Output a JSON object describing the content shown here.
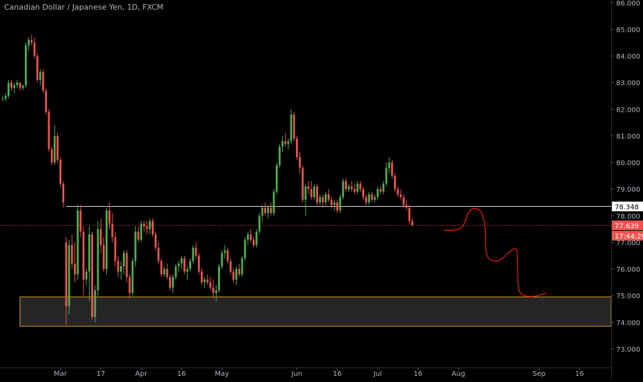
{
  "header": {
    "title": "Canadian Dollar / Japanese Yen, 1D, FXCM"
  },
  "colors": {
    "background": "#000000",
    "up": "#4caf50",
    "down": "#ef5350",
    "axis_text": "#b2b5be",
    "zone_border": "#e0a030",
    "zone_fill": "#2c2c2c",
    "resistance_line": "#e6e6e6",
    "price_line": "#ef5350",
    "projection": "#e01010"
  },
  "price_labels": {
    "resistance": "78.348",
    "last_price": "77.639",
    "countdown": "17:44:29"
  },
  "chart_data": {
    "type": "candlestick",
    "title": "Canadian Dollar / Japanese Yen, 1D, FXCM",
    "y_axis": {
      "range": [
        72.3,
        86.1
      ],
      "ticks": [
        "73.000",
        "74.000",
        "75.000",
        "76.000",
        "77.000",
        "78.000",
        "79.000",
        "80.000",
        "81.000",
        "82.000",
        "83.000",
        "84.000",
        "85.000",
        "86.000"
      ]
    },
    "x_axis": {
      "ticks": [
        "Mar",
        "17",
        "Apr",
        "16",
        "May",
        "Jun",
        "16",
        "Jul",
        "16",
        "Aug",
        "Sep",
        "16"
      ],
      "tick_bar_index": [
        20,
        34,
        48,
        62,
        76,
        102,
        116,
        130,
        144,
        158,
        186,
        200
      ]
    },
    "ohlc": [
      [
        82.4,
        82.5,
        82.3,
        82.4
      ],
      [
        82.4,
        82.6,
        82.3,
        82.5
      ],
      [
        82.5,
        83.1,
        82.4,
        83.0
      ],
      [
        83.0,
        83.1,
        82.7,
        82.8
      ],
      [
        82.8,
        83.0,
        82.6,
        82.9
      ],
      [
        82.9,
        83.1,
        82.8,
        83.0
      ],
      [
        83.0,
        83.0,
        82.7,
        82.8
      ],
      [
        82.8,
        82.9,
        82.7,
        82.9
      ],
      [
        82.9,
        84.5,
        82.8,
        84.4
      ],
      [
        84.4,
        84.7,
        84.2,
        84.6
      ],
      [
        84.6,
        84.8,
        84.4,
        84.5
      ],
      [
        84.5,
        84.7,
        83.9,
        84.0
      ],
      [
        84.0,
        84.1,
        83.0,
        83.1
      ],
      [
        83.1,
        83.5,
        82.9,
        83.4
      ],
      [
        83.4,
        83.5,
        82.6,
        82.7
      ],
      [
        82.7,
        82.8,
        81.8,
        81.9
      ],
      [
        81.9,
        82.0,
        80.4,
        80.5
      ],
      [
        80.5,
        80.6,
        79.9,
        80.0
      ],
      [
        80.0,
        81.4,
        79.9,
        81.0
      ],
      [
        81.0,
        81.1,
        80.0,
        80.1
      ],
      [
        80.1,
        80.2,
        79.1,
        79.2
      ],
      [
        79.2,
        79.3,
        78.3,
        78.5
      ],
      [
        77.0,
        77.2,
        73.9,
        74.6
      ],
      [
        74.6,
        77.1,
        74.3,
        76.9
      ],
      [
        76.9,
        77.3,
        76.0,
        76.2
      ],
      [
        76.2,
        77.0,
        75.5,
        75.8
      ],
      [
        75.8,
        78.4,
        75.6,
        78.2
      ],
      [
        78.2,
        78.4,
        77.2,
        77.4
      ],
      [
        77.4,
        77.6,
        75.0,
        75.6
      ],
      [
        75.6,
        76.0,
        75.4,
        75.9
      ],
      [
        75.9,
        77.6,
        74.8,
        77.3
      ],
      [
        77.3,
        77.4,
        74.1,
        74.2
      ],
      [
        74.2,
        75.4,
        74.0,
        75.2
      ],
      [
        75.2,
        77.8,
        75.0,
        77.5
      ],
      [
        77.5,
        77.9,
        76.6,
        76.9
      ],
      [
        76.9,
        77.2,
        75.9,
        76.0
      ],
      [
        76.0,
        78.3,
        75.8,
        78.2
      ],
      [
        78.2,
        78.5,
        77.5,
        77.7
      ],
      [
        77.7,
        78.1,
        77.0,
        77.2
      ],
      [
        77.2,
        77.4,
        76.1,
        76.3
      ],
      [
        76.3,
        76.5,
        75.7,
        75.9
      ],
      [
        75.9,
        76.3,
        75.6,
        76.1
      ],
      [
        76.1,
        76.7,
        75.8,
        76.6
      ],
      [
        76.6,
        76.7,
        75.5,
        75.7
      ],
      [
        75.7,
        75.8,
        74.9,
        75.1
      ],
      [
        75.1,
        76.4,
        75.0,
        76.3
      ],
      [
        76.3,
        77.6,
        76.1,
        77.4
      ],
      [
        77.4,
        77.6,
        77.0,
        77.1
      ],
      [
        77.1,
        77.8,
        77.0,
        77.7
      ],
      [
        77.7,
        77.8,
        77.4,
        77.6
      ],
      [
        77.6,
        77.8,
        77.3,
        77.5
      ],
      [
        77.5,
        77.9,
        77.3,
        77.8
      ],
      [
        77.8,
        77.9,
        77.2,
        77.3
      ],
      [
        77.3,
        77.4,
        76.7,
        76.8
      ],
      [
        76.8,
        77.0,
        76.2,
        76.3
      ],
      [
        76.3,
        76.4,
        75.7,
        75.8
      ],
      [
        75.8,
        76.1,
        75.7,
        76.0
      ],
      [
        76.0,
        76.2,
        75.6,
        75.7
      ],
      [
        75.7,
        75.8,
        75.2,
        75.3
      ],
      [
        75.3,
        75.8,
        75.1,
        75.7
      ],
      [
        75.7,
        76.2,
        75.6,
        76.1
      ],
      [
        76.1,
        76.3,
        75.9,
        76.2
      ],
      [
        76.2,
        76.5,
        76.0,
        76.4
      ],
      [
        76.4,
        76.5,
        75.8,
        75.9
      ],
      [
        75.9,
        76.1,
        75.6,
        76.0
      ],
      [
        76.0,
        76.4,
        75.9,
        76.3
      ],
      [
        76.3,
        76.9,
        76.2,
        76.8
      ],
      [
        76.8,
        77.0,
        76.4,
        76.5
      ],
      [
        76.5,
        76.6,
        75.8,
        75.9
      ],
      [
        75.9,
        76.0,
        75.4,
        75.5
      ],
      [
        75.5,
        75.7,
        75.3,
        75.6
      ],
      [
        75.6,
        75.8,
        75.4,
        75.5
      ],
      [
        75.5,
        75.7,
        75.2,
        75.3
      ],
      [
        75.3,
        75.6,
        74.9,
        75.1
      ],
      [
        75.1,
        75.4,
        74.8,
        75.2
      ],
      [
        75.2,
        76.2,
        75.1,
        76.1
      ],
      [
        76.1,
        76.7,
        76.0,
        76.6
      ],
      [
        76.6,
        76.9,
        76.4,
        76.7
      ],
      [
        76.7,
        76.8,
        76.2,
        76.3
      ],
      [
        76.3,
        76.4,
        75.8,
        75.9
      ],
      [
        75.9,
        76.0,
        75.5,
        75.6
      ],
      [
        75.6,
        76.1,
        75.4,
        76.0
      ],
      [
        76.0,
        76.2,
        75.7,
        75.8
      ],
      [
        75.8,
        76.5,
        75.7,
        76.4
      ],
      [
        76.4,
        77.2,
        76.3,
        77.1
      ],
      [
        77.1,
        77.4,
        76.9,
        77.3
      ],
      [
        77.3,
        77.5,
        77.0,
        77.1
      ],
      [
        77.1,
        77.2,
        76.8,
        76.9
      ],
      [
        76.9,
        77.5,
        76.8,
        77.4
      ],
      [
        77.4,
        78.1,
        77.3,
        78.0
      ],
      [
        78.0,
        78.4,
        77.8,
        78.3
      ],
      [
        78.3,
        78.5,
        78.0,
        78.1
      ],
      [
        78.1,
        78.4,
        77.9,
        78.3
      ],
      [
        78.3,
        78.5,
        78.0,
        78.1
      ],
      [
        78.1,
        79.0,
        78.0,
        78.9
      ],
      [
        78.9,
        80.0,
        78.8,
        79.9
      ],
      [
        79.9,
        80.7,
        79.8,
        80.6
      ],
      [
        80.6,
        81.0,
        80.4,
        80.8
      ],
      [
        80.8,
        81.1,
        80.6,
        80.7
      ],
      [
        80.7,
        80.9,
        80.5,
        80.8
      ],
      [
        80.8,
        82.0,
        80.7,
        81.8
      ],
      [
        81.8,
        81.9,
        80.8,
        80.9
      ],
      [
        80.9,
        81.0,
        80.1,
        80.2
      ],
      [
        80.2,
        80.4,
        79.6,
        79.8
      ],
      [
        79.8,
        79.9,
        78.5,
        78.6
      ],
      [
        78.6,
        79.2,
        78.0,
        79.1
      ],
      [
        79.1,
        79.3,
        78.8,
        79.0
      ],
      [
        79.0,
        79.3,
        78.6,
        78.7
      ],
      [
        78.7,
        79.2,
        78.6,
        79.1
      ],
      [
        79.1,
        79.2,
        78.4,
        78.5
      ],
      [
        78.5,
        78.8,
        78.4,
        78.7
      ],
      [
        78.7,
        78.8,
        78.3,
        78.5
      ],
      [
        78.5,
        78.9,
        78.4,
        78.8
      ],
      [
        78.8,
        79.0,
        78.5,
        78.6
      ],
      [
        78.6,
        78.7,
        78.3,
        78.4
      ],
      [
        78.4,
        78.6,
        78.2,
        78.5
      ],
      [
        78.5,
        78.6,
        78.1,
        78.2
      ],
      [
        78.2,
        78.8,
        78.1,
        78.7
      ],
      [
        78.7,
        79.4,
        78.6,
        79.3
      ],
      [
        79.3,
        79.4,
        78.9,
        79.0
      ],
      [
        79.0,
        79.2,
        78.9,
        79.1
      ],
      [
        79.1,
        79.3,
        78.9,
        79.0
      ],
      [
        79.0,
        79.2,
        78.8,
        78.9
      ],
      [
        78.9,
        79.3,
        78.8,
        79.2
      ],
      [
        79.2,
        79.3,
        78.9,
        79.0
      ],
      [
        79.0,
        79.1,
        78.6,
        78.7
      ],
      [
        78.7,
        78.8,
        78.4,
        78.5
      ],
      [
        78.5,
        78.9,
        78.4,
        78.8
      ],
      [
        78.8,
        78.9,
        78.5,
        78.6
      ],
      [
        78.6,
        78.8,
        78.5,
        78.7
      ],
      [
        78.7,
        79.1,
        78.6,
        79.0
      ],
      [
        79.0,
        79.1,
        78.8,
        78.9
      ],
      [
        78.9,
        79.3,
        78.8,
        79.2
      ],
      [
        79.2,
        80.0,
        79.1,
        79.8
      ],
      [
        79.8,
        80.2,
        79.6,
        80.0
      ],
      [
        80.0,
        80.1,
        79.4,
        79.5
      ],
      [
        79.5,
        79.6,
        78.9,
        79.0
      ],
      [
        79.0,
        79.1,
        78.7,
        78.8
      ],
      [
        78.8,
        79.0,
        78.6,
        78.7
      ],
      [
        78.7,
        78.8,
        78.3,
        78.4
      ],
      [
        78.4,
        78.6,
        78.2,
        78.3
      ],
      [
        78.3,
        78.4,
        77.7,
        77.8
      ],
      [
        77.8,
        77.9,
        77.6,
        77.64
      ]
    ],
    "annotations": [
      {
        "type": "support_zone",
        "label": "",
        "range": [
          73.85,
          74.95
        ]
      },
      {
        "type": "horizontal_line",
        "label": "78.348",
        "value": 78.348
      },
      {
        "type": "price_line",
        "label": "77.639",
        "value": 77.639
      },
      {
        "type": "projection_path",
        "label": "",
        "points": [
          [
            153.0,
            77.45
          ],
          [
            156.8,
            77.45
          ],
          [
            159.5,
            77.55
          ],
          [
            160.7,
            77.9
          ],
          [
            161.7,
            78.2
          ],
          [
            163.7,
            78.3
          ],
          [
            165.8,
            78.2
          ],
          [
            167.0,
            77.8
          ],
          [
            167.5,
            77.3
          ],
          [
            167.4,
            76.8
          ],
          [
            167.8,
            76.5
          ],
          [
            169.3,
            76.3
          ],
          [
            172.3,
            76.3
          ],
          [
            175.3,
            76.6
          ],
          [
            177.6,
            76.8
          ],
          [
            178.4,
            76.7
          ],
          [
            178.6,
            76.0
          ],
          [
            178.6,
            75.4
          ],
          [
            179.4,
            75.05
          ],
          [
            182.7,
            74.95
          ],
          [
            185.7,
            75.0
          ],
          [
            188.5,
            75.1
          ]
        ]
      }
    ]
  }
}
